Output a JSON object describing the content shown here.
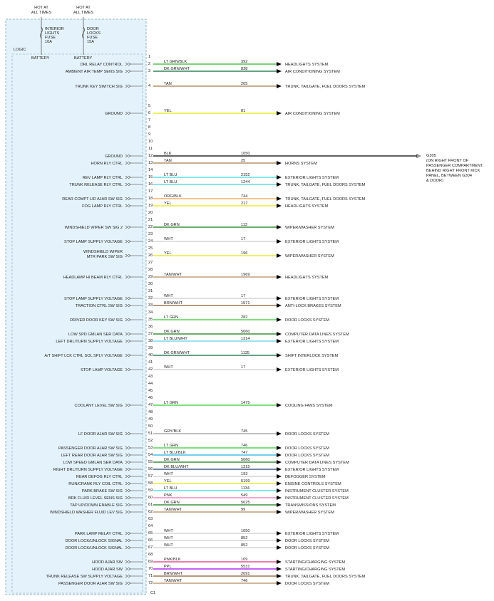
{
  "header": {
    "hot_labels": [
      [
        "HOT AT",
        "ALL TIMES"
      ],
      [
        "HOT AT",
        "ALL TIMES"
      ]
    ],
    "fuses": [
      [
        "INTERIOR",
        "LIGHTS",
        "FUSE",
        "10A"
      ],
      [
        "DOOR",
        "LOCKS",
        "FUSE",
        "15A"
      ]
    ],
    "logic": "LOGIC",
    "battery_labels": [
      "BATTERY",
      "BATTERY"
    ]
  },
  "connector": "C1",
  "ground_note": [
    "G305",
    "(ON RIGHT FRONT OF",
    "PASSENGER COMPARTMENT,",
    "BEHIND RIGHT FRONT KICK",
    "PANEL, BETWEEN G304",
    "& DOOR)"
  ],
  "pins": [
    {
      "pin": 1
    },
    {
      "pin": 2,
      "signal": "DRL RELAY CONTROL",
      "wire": "LT GRN/BLK",
      "circuit": 392,
      "destination": "HEADLIGHTS SYSTEM",
      "line_color": "#2db52d"
    },
    {
      "pin": 3,
      "signal": "AMBIENT AIR TEMP SENS SIG",
      "wire": "DK GRN/WHT",
      "circuit": 838,
      "destination": "AIR CONDITIONING SYSTEM",
      "line_color": "#0b6b3a"
    },
    {
      "pin": 4,
      "signal": "TRUNK KEY SWITCH SIG",
      "wire": "TAN",
      "circuit": 205,
      "destination": "TRUNK, TAILGATE, FUEL DOORS SYSTEM",
      "line_color": "#a57a4c"
    },
    {
      "pin": 5
    },
    {
      "pin": 6,
      "signal": "GROUND",
      "wire": "YEL",
      "circuit": 81,
      "destination": "AIR CONDITIONING SYSTEM",
      "line_color": "#e8e800"
    },
    {
      "pin": 7
    },
    {
      "pin": 8
    },
    {
      "pin": 9
    },
    {
      "pin": 10
    },
    {
      "pin": 11
    },
    {
      "pin": 12,
      "signal": "GROUND",
      "wire": "BLK",
      "circuit": 1050,
      "line_color": "#000000"
    },
    {
      "pin": 13,
      "signal": "HORN RLY CTRL",
      "wire": "TAN",
      "circuit": 25,
      "destination": "HORNS SYSTEM",
      "line_color": "#a57a4c"
    },
    {
      "pin": 14
    },
    {
      "pin": 15,
      "signal": "REV LAMP RLY CTRL",
      "wire": "LT BLU",
      "circuit": 2152,
      "destination": "EXTERIOR LIGHTS SYSTEM",
      "line_color": "#3dd6e0"
    },
    {
      "pin": 16,
      "signal": "TRUNK RELEASE RLY CTRL",
      "wire": "LT BLU",
      "circuit": 1244,
      "destination": "TRUNK, TAILGATE, FUEL DOORS SYSTEM",
      "line_color": "#3dd6e0"
    },
    {
      "pin": 17
    },
    {
      "pin": 18,
      "signal": "REAR COMPT LID AJAR SW SIG",
      "wire": "ORG/BLK",
      "circuit": 744,
      "destination": "TRUNK, TAILGATE, FUEL DOORS SYSTEM",
      "line_color": "#f0a040"
    },
    {
      "pin": 19,
      "signal": "FOG LAMP RLY CTRL",
      "wire": "YEL",
      "circuit": 217,
      "destination": "HEADLIGHTS SYSTEM",
      "line_color": "#e8e800"
    },
    {
      "pin": 20
    },
    {
      "pin": 21
    },
    {
      "pin": 22,
      "signal": "WINDSHIELD WIPER SW SIG 2",
      "wire": "DK GRN",
      "circuit": 113,
      "destination": "WIPER/WASHER SYSTEM",
      "line_color": "#157a15"
    },
    {
      "pin": 23
    },
    {
      "pin": 24,
      "signal": "STOP LAMP SUPPLY VOLTAGE",
      "wire": "WHT",
      "circuit": 17,
      "destination": "EXTERIOR LIGHTS SYSTEM",
      "line_color": "#cccccc"
    },
    {
      "pin": 25
    },
    {
      "pin": 26,
      "signal": [
        "WINDSHIELD WIPER",
        "MTR PARK SW SIG"
      ],
      "wire": "YEL",
      "circuit": 196,
      "destination": "WIPER/WASHER SYSTEM",
      "line_color": "#e8e800"
    },
    {
      "pin": 27
    },
    {
      "pin": 28
    },
    {
      "pin": 29,
      "signal": "HEADLAMP HI BEAM RLY CTRL",
      "wire": "TAN/WHT",
      "circuit": 1969,
      "destination": "HEADLIGHTS SYSTEM",
      "line_color": "#b48a5c"
    },
    {
      "pin": 30
    },
    {
      "pin": 31
    },
    {
      "pin": 32,
      "signal": "STOP LAMP SUPPLY VOLTAGE",
      "wire": "WHT",
      "circuit": 17,
      "destination": "EXTERIOR LIGHTS SYSTEM",
      "line_color": "#cccccc"
    },
    {
      "pin": 33,
      "signal": "TRACTION CTRL SW SIG",
      "wire": "BRN/WHT",
      "circuit": 1571,
      "destination": "ANTI-LOCK BRAKES SYSTEM",
      "line_color": "#8b5a2b"
    },
    {
      "pin": 34
    },
    {
      "pin": 35,
      "signal": "DRIVER DOOR KEY SW SIG",
      "wire": "LT GRN",
      "circuit": 282,
      "destination": "DOOR LOCKS SYSTEM",
      "line_color": "#33cc33"
    },
    {
      "pin": 36
    },
    {
      "pin": 37,
      "signal": "LOW SPD GMLAN SER DATA",
      "wire": "DK GRN",
      "circuit": 5060,
      "destination": "COMPUTER DATA LINES SYSTEM",
      "line_color": "#157a15"
    },
    {
      "pin": 38,
      "signal": "LEFT DRL/TURN SUPPLY VOLTAGE",
      "wire": "LT BLU/WHT",
      "circuit": 1314,
      "destination": "EXTERIOR LIGHTS SYSTEM",
      "line_color": "#5ad0e8"
    },
    {
      "pin": 39
    },
    {
      "pin": 40,
      "signal": "A/T SHIFT LCK CTRL SOL SPLY VOLTAGE",
      "wire": "DK GRN/WHT",
      "circuit": 1135,
      "destination": "SHIFT INTERLOCK SYSTEM",
      "line_color": "#0b6b3a"
    },
    {
      "pin": 41
    },
    {
      "pin": 42,
      "signal": "STOP LAMP VOLTAGE",
      "wire": "WHT",
      "circuit": 17,
      "destination": "EXTERIOR LIGHTS SYSTEM",
      "line_color": "#cccccc"
    },
    {
      "pin": 43
    },
    {
      "pin": 44
    },
    {
      "pin": 45
    },
    {
      "pin": 46
    },
    {
      "pin": 47,
      "signal": "COOLANT LEVEL SW SIG",
      "wire": "LT GRN",
      "circuit": 1475,
      "destination": "COOLING FANS SYSTEM",
      "line_color": "#33cc33"
    },
    {
      "pin": 48
    },
    {
      "pin": 49
    },
    {
      "pin": 50
    },
    {
      "pin": 51,
      "signal": "LF DOOR AJAR SW SIG",
      "wire": "GRY/BLK",
      "circuit": 745,
      "destination": "DOOR LOCKS SYSTEM",
      "line_color": "#999999"
    },
    {
      "pin": 52
    },
    {
      "pin": 53,
      "signal": "PASSENGER DOOR AJAR SW SIG",
      "wire": "LT GRN",
      "circuit": 746,
      "destination": "DOOR LOCKS SYSTEM",
      "line_color": "#33cc33"
    },
    {
      "pin": 54,
      "signal": "LEFT REAR DOOR AJAR SW SIG",
      "wire": "LT BLU/BLK",
      "circuit": 747,
      "destination": "DOOR LOCKS SYSTEM",
      "line_color": "#1fb0e0"
    },
    {
      "pin": 55,
      "signal": "LOW SPEED GMLAN SER DATA",
      "wire": "DK GRN",
      "circuit": 5060,
      "destination": "COMPUTER DATA LINES SYSTEM",
      "line_color": "#157a15"
    },
    {
      "pin": 56,
      "signal": "RIGHT DRL/TURN SUPPLY VOLTAGE",
      "wire": "DK BLU/WHT",
      "circuit": 1315,
      "destination": "EXTERIOR LIGHTS SYSTEM",
      "line_color": "#1a3d6b"
    },
    {
      "pin": 57,
      "signal": "REAR DEFOG RLY CTRL",
      "wire": "WHT",
      "circuit": 193,
      "destination": "DEFOGGER SYSTEM",
      "line_color": "#cccccc"
    },
    {
      "pin": 58,
      "signal": "RUN/CRANK RLY COIL CTRL",
      "wire": "YEL",
      "circuit": 5199,
      "destination": "ENGINE CONTROLS SYSTEM",
      "line_color": "#e8e800"
    },
    {
      "pin": 59,
      "signal": "PARK BRAKE SW SIG",
      "wire": "LT BLU",
      "circuit": 1134,
      "destination": "INSTRUMENT CLUSTER SYSTEM",
      "line_color": "#3dd6e0"
    },
    {
      "pin": 60,
      "signal": "BRK FLUID LEVEL SENS SIG",
      "wire": "PNK",
      "circuit": 549,
      "destination": "INSTRUMENT CLUSTER SYSTEM",
      "line_color": "#f070c0"
    },
    {
      "pin": 61,
      "signal": "TAP UP/DOWN ENABLE SIG",
      "wire": "DK GRN",
      "circuit": 5625,
      "destination": "TRANSMISSIONS SYSTEM",
      "line_color": "#157a15"
    },
    {
      "pin": 62,
      "signal": "WINDSHIELD WASHER FLUID LEV SIG",
      "wire": "TAN/WHT",
      "circuit": 99,
      "destination": "WIPER/WASHER SYSTEM",
      "line_color": "#b48a5c"
    },
    {
      "pin": 63
    },
    {
      "pin": 64
    },
    {
      "pin": 65,
      "signal": "PARK LAMP RELAY CTRL",
      "wire": "WHT",
      "circuit": 1050,
      "destination": "EXTERIOR LIGHTS SYSTEM",
      "line_color": "#cccccc"
    },
    {
      "pin": 66,
      "signal": "DOOR LOCK/UNLOCK SIGNAL",
      "wire": "WHT",
      "circuit": 852,
      "destination": "DOOR LOCKS SYSTEM",
      "line_color": "#cccccc"
    },
    {
      "pin": 67,
      "signal": "DOOR LOCK/UNLOCK SIGNAL",
      "wire": "WHT",
      "circuit": 852,
      "destination": "DOOR LOCKS SYSTEM",
      "line_color": "#cccccc"
    },
    {
      "pin": 68
    },
    {
      "pin": 69,
      "signal": "HOOD AJAR SW",
      "wire": "PNK/BLK",
      "circuit": 109,
      "destination": "STARTING/CHARGING SYSTEM",
      "line_color": "#e0307a"
    },
    {
      "pin": 70,
      "signal": "HOOD AJAR SW",
      "wire": "PPL",
      "circuit": 5531,
      "destination": "STARTING/CHARGING SYSTEM",
      "line_color": "#a000f0"
    },
    {
      "pin": 71,
      "signal": "TRUNK RELEASE SW SUPPLY VOLTAGE",
      "wire": "BRN/WHT",
      "circuit": 2091,
      "destination": "TRUNK, TAILGATE, FUEL DOORS SYSTEM",
      "line_color": "#8b5a2b"
    },
    {
      "pin": 72,
      "signal": "PASSENGER DOOR AJAR SW SIG",
      "wire": "TAN/WHT",
      "circuit": 746,
      "destination": "DOOR LOCKS SYSTEM",
      "line_color": "#b48a5c"
    }
  ]
}
